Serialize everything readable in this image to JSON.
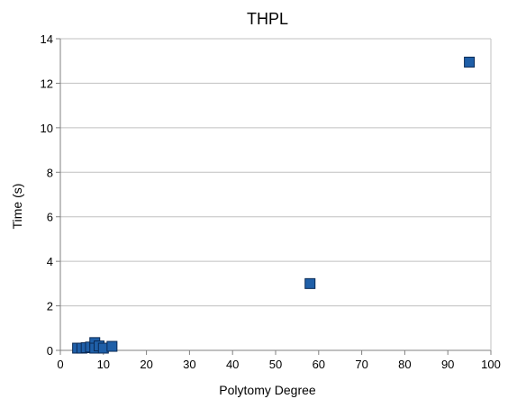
{
  "chart_data": {
    "type": "scatter",
    "title": "THPL",
    "xlabel": "Polytomy Degree",
    "ylabel": "Time (s)",
    "xlim": [
      0,
      100
    ],
    "ylim": [
      0,
      14
    ],
    "x_ticks": [
      0,
      10,
      20,
      30,
      40,
      50,
      60,
      70,
      80,
      90,
      100
    ],
    "y_ticks": [
      0,
      2,
      4,
      6,
      8,
      10,
      12,
      14
    ],
    "grid": "horizontal",
    "legend": "none",
    "marker": "square",
    "series": [
      {
        "points": [
          {
            "x": 4,
            "y": 0.1
          },
          {
            "x": 5,
            "y": 0.1
          },
          {
            "x": 6,
            "y": 0.12
          },
          {
            "x": 7,
            "y": 0.15
          },
          {
            "x": 8,
            "y": 0.35
          },
          {
            "x": 8,
            "y": 0.1
          },
          {
            "x": 9,
            "y": 0.2
          },
          {
            "x": 10,
            "y": 0.1
          },
          {
            "x": 12,
            "y": 0.18
          },
          {
            "x": 58,
            "y": 3.0
          },
          {
            "x": 95,
            "y": 12.95
          }
        ]
      }
    ]
  },
  "colors": {
    "marker_fill": "#1f5fa8",
    "marker_stroke": "#0a2a55",
    "grid": "#c0c0c0",
    "axis": "#808080"
  }
}
